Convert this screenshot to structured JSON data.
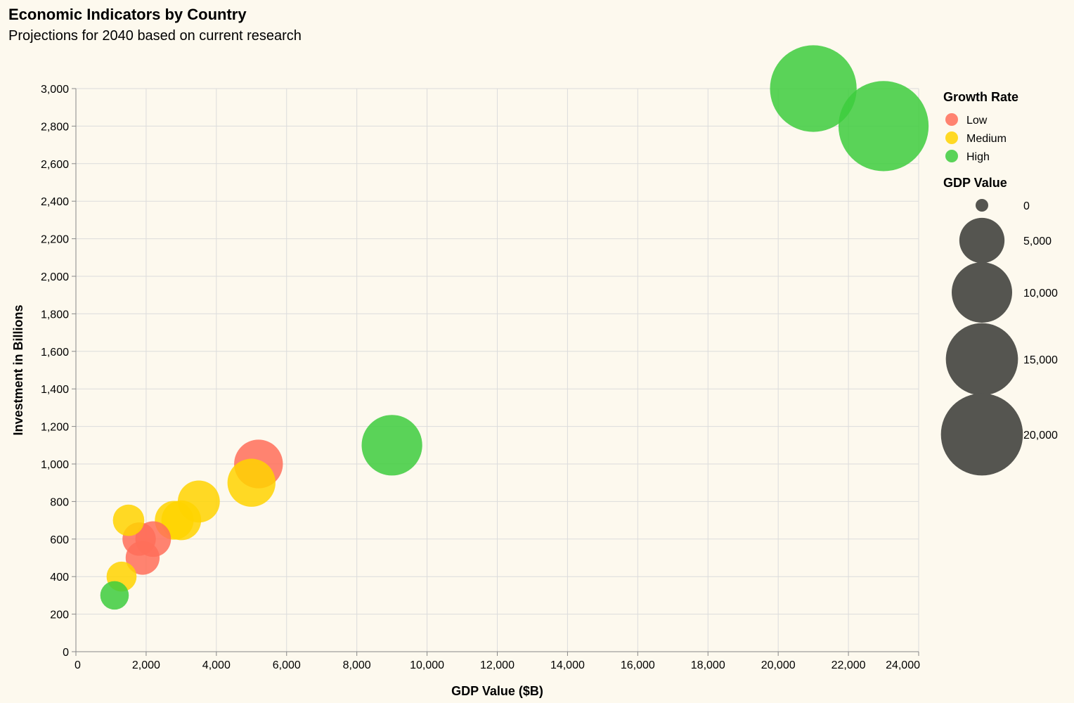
{
  "chart_data": {
    "type": "scatter",
    "title": "Economic Indicators by Country",
    "subtitle": "Projections for 2040 based on current research",
    "xlabel": "GDP Value ($B)",
    "ylabel": "Investment in Billions",
    "xlim": [
      0,
      24000
    ],
    "ylim": [
      0,
      3000
    ],
    "x_ticks": [
      0,
      2000,
      4000,
      6000,
      8000,
      10000,
      12000,
      14000,
      16000,
      18000,
      20000,
      22000,
      24000
    ],
    "y_ticks": [
      0,
      200,
      400,
      600,
      800,
      1000,
      1200,
      1400,
      1600,
      1800,
      2000,
      2200,
      2400,
      2600,
      2800,
      3000
    ],
    "x_tick_labels": [
      "0",
      "2,000",
      "4,000",
      "6,000",
      "8,000",
      "10,000",
      "12,000",
      "14,000",
      "16,000",
      "18,000",
      "20,000",
      "22,000",
      "24,000"
    ],
    "y_tick_labels": [
      "0",
      "200",
      "400",
      "600",
      "800",
      "1,000",
      "1,200",
      "1,400",
      "1,600",
      "1,800",
      "2,000",
      "2,200",
      "2,400",
      "2,600",
      "2,800",
      "3,000"
    ],
    "grid": true,
    "size_field": "GDP Value",
    "color_field": "Growth Rate",
    "categories": [
      "Low",
      "Medium",
      "High"
    ],
    "colors": {
      "Low": "#ff6f59",
      "Medium": "#ffd300",
      "High": "#3dcc3d"
    },
    "points": [
      {
        "x": 23000,
        "y": 2800,
        "size": 23000,
        "growth": "High"
      },
      {
        "x": 21000,
        "y": 3000,
        "size": 21000,
        "growth": "High"
      },
      {
        "x": 9000,
        "y": 1100,
        "size": 9000,
        "growth": "High"
      },
      {
        "x": 5200,
        "y": 1000,
        "size": 5200,
        "growth": "Low"
      },
      {
        "x": 5000,
        "y": 900,
        "size": 5000,
        "growth": "Medium"
      },
      {
        "x": 3500,
        "y": 800,
        "size": 3500,
        "growth": "Medium"
      },
      {
        "x": 3000,
        "y": 700,
        "size": 3000,
        "growth": "Medium"
      },
      {
        "x": 2800,
        "y": 700,
        "size": 2800,
        "growth": "Medium"
      },
      {
        "x": 2200,
        "y": 600,
        "size": 2200,
        "growth": "Low"
      },
      {
        "x": 1800,
        "y": 600,
        "size": 1800,
        "growth": "Low"
      },
      {
        "x": 1900,
        "y": 500,
        "size": 1900,
        "growth": "Low"
      },
      {
        "x": 1500,
        "y": 700,
        "size": 1500,
        "growth": "Medium"
      },
      {
        "x": 1300,
        "y": 400,
        "size": 1300,
        "growth": "Medium"
      },
      {
        "x": 1100,
        "y": 300,
        "size": 1100,
        "growth": "High"
      }
    ],
    "legend": {
      "color_title": "Growth Rate",
      "color_entries": [
        "Low",
        "Medium",
        "High"
      ],
      "size_title": "GDP Value",
      "size_values": [
        0,
        5000,
        10000,
        15000,
        20000
      ],
      "size_labels": [
        "0",
        "5,000",
        "10,000",
        "15,000",
        "20,000"
      ],
      "size_color": "#555550",
      "placement": "right"
    }
  }
}
